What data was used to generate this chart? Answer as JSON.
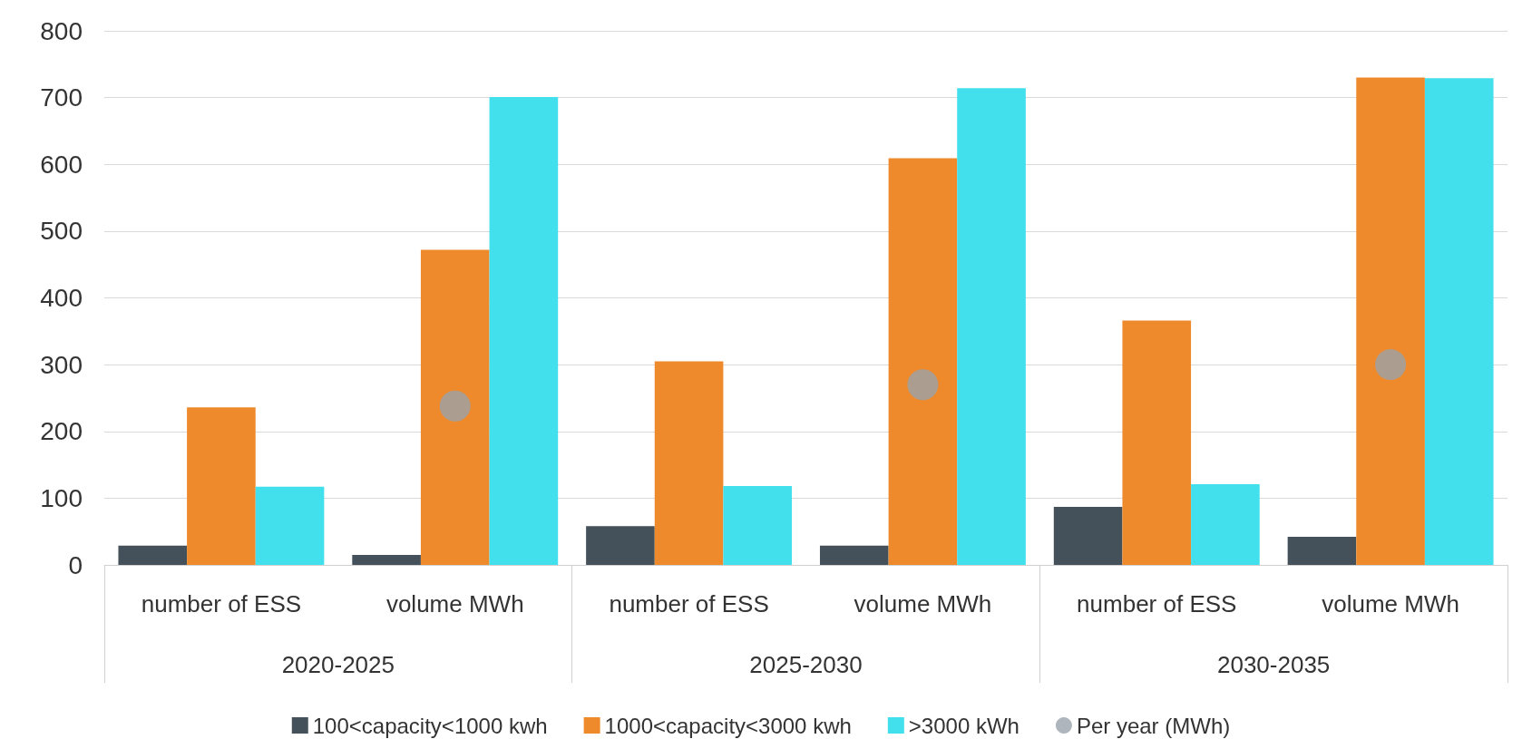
{
  "chart_data": {
    "type": "bar",
    "categories": [
      "number of ESS",
      "volume MWh",
      "number of ESS",
      "volume MWh",
      "number of ESS",
      "volume MWh"
    ],
    "annotations": [
      "2020-2025",
      "2025-2030",
      "2030-2035"
    ],
    "series": [
      {
        "name": "100<capacity<1000 kwh",
        "color": "#44515a",
        "values": [
          29,
          15,
          58,
          29,
          87,
          42
        ]
      },
      {
        "name": "1000<capacity<3000 kwh",
        "color": "#ee8a2c",
        "values": [
          236,
          472,
          305,
          609,
          366,
          730
        ]
      },
      {
        "name": ">3000 kWh",
        "color": "#42dfec",
        "values": [
          117,
          701,
          118,
          714,
          121,
          729
        ]
      },
      {
        "name": "Per year (MWh)",
        "type": "scatter",
        "marker": "circle",
        "color": "#9aa3ab",
        "values": [
          null,
          238,
          null,
          270,
          null,
          300
        ]
      }
    ],
    "ylim": [
      0,
      800
    ],
    "yticks": [
      0,
      100,
      200,
      300,
      400,
      500,
      600,
      700,
      800
    ],
    "grid": "y",
    "legend": "bottom"
  }
}
